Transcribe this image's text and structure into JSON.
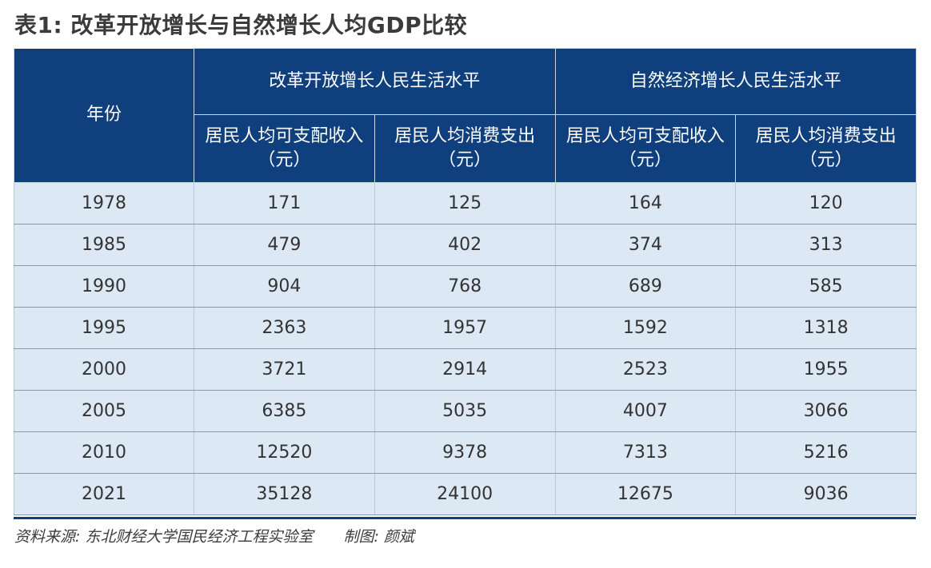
{
  "title": "表1: 改革开放增长与自然增长人均GDP比较",
  "table": {
    "year_header": "年份",
    "groups": [
      "改革开放增长人民生活水平",
      "自然经济增长人民生活水平"
    ],
    "subheaders": [
      {
        "line1": "居民人均可支配收入",
        "line2": "（元）"
      },
      {
        "line1": "居民人均消费支出",
        "line2": "（元）"
      },
      {
        "line1": "居民人均可支配收入",
        "line2": "（元）"
      },
      {
        "line1": "居民人均消费支出",
        "line2": "（元）"
      }
    ],
    "rows": [
      {
        "year": "1978",
        "values": [
          "171",
          "125",
          "164",
          "120"
        ]
      },
      {
        "year": "1985",
        "values": [
          "479",
          "402",
          "374",
          "313"
        ]
      },
      {
        "year": "1990",
        "values": [
          "904",
          "768",
          "689",
          "585"
        ]
      },
      {
        "year": "1995",
        "values": [
          "2363",
          "1957",
          "1592",
          "1318"
        ]
      },
      {
        "year": "2000",
        "values": [
          "3721",
          "2914",
          "2523",
          "1955"
        ]
      },
      {
        "year": "2005",
        "values": [
          "6385",
          "5035",
          "4007",
          "3066"
        ]
      },
      {
        "year": "2010",
        "values": [
          "12520",
          "9378",
          "7313",
          "5216"
        ]
      },
      {
        "year": "2021",
        "values": [
          "35128",
          "24100",
          "12675",
          "9036"
        ]
      }
    ]
  },
  "footer": {
    "source": "资料来源: 东北财经大学国民经济工程实验室",
    "maker": "制图: 颜斌"
  },
  "colors": {
    "header_bg": "#0f3f7c",
    "row_bg": "#dde8f5"
  }
}
